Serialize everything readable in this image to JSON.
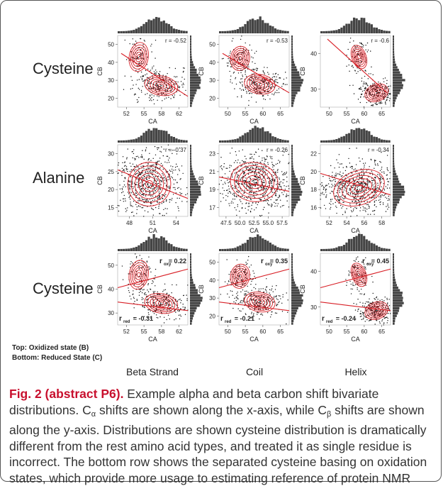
{
  "rows": [
    {
      "label": "Cysteine"
    },
    {
      "label": "Alanine"
    },
    {
      "label": "Cysteine"
    }
  ],
  "columns": [
    {
      "label": "Beta Strand"
    },
    {
      "label": "Coil"
    },
    {
      "label": "Helix"
    }
  ],
  "legend_lines": [
    "Top: Oxidized state (B)",
    "Bottom: Reduced State (C)"
  ],
  "axis": {
    "xlabel": "CA",
    "ylabel": "CB"
  },
  "panels": [
    {
      "r": "r = -0.52",
      "xticks": [
        "52",
        "55",
        "58",
        "62"
      ],
      "yticks": [
        "50",
        "40",
        "30",
        "20"
      ]
    },
    {
      "r": "r = -0.53",
      "xticks": [
        "50",
        "55",
        "60",
        "65"
      ],
      "yticks": [
        "50",
        "40",
        "30",
        "20"
      ]
    },
    {
      "r": "r = -0.6",
      "xticks": [
        "50",
        "55",
        "60",
        "65"
      ],
      "yticks": [
        "40",
        "30"
      ]
    },
    {
      "r": "r = -0.37",
      "xticks": [
        "48",
        "51",
        "54"
      ],
      "yticks": [
        "30",
        "25",
        "20",
        "15"
      ]
    },
    {
      "r": "r = -0.26",
      "xticks": [
        "47.5",
        "50.0",
        "52.5",
        "55.0",
        "57.5"
      ],
      "yticks": [
        "23",
        "21",
        "19",
        "17"
      ]
    },
    {
      "r": "r = -0.34",
      "xticks": [
        "52",
        "54",
        "56",
        "58"
      ],
      "yticks": [
        "22",
        "20",
        "18",
        "16"
      ]
    },
    {
      "r_oxy": "= 0.22",
      "r_red": "= -0.31",
      "xticks": [
        "52",
        "55",
        "58",
        "62"
      ],
      "yticks": [
        "50",
        "40",
        "30"
      ]
    },
    {
      "r_oxy": "= 0.35",
      "r_red": "= -0.21",
      "xticks": [
        "50",
        "55",
        "60",
        "65"
      ],
      "yticks": [
        "50",
        "40",
        "30",
        "20"
      ]
    },
    {
      "r_oxy": "= 0.45",
      "r_red": "= -0.24",
      "xticks": [
        "50",
        "55",
        "60",
        "65"
      ],
      "yticks": [
        "40",
        "30"
      ]
    }
  ],
  "caption": {
    "fig_label": "Fig. 2 (abstract P6).",
    "part1": " Example alpha and beta carbon shift bivariate distributions. C",
    "sub_alpha": "α",
    "part2": " shifts are shown along the x-axis, while C",
    "sub_beta": "β",
    "part3": " shifts are shown along the y-axis. Distributions are shown cysteine distribution is dramatically different from the rest amino acid types, and treated it as single residue is incorrect. The bottom row shows the separated cysteine basing on oxidation states, which provide more usage to estimating reference of protein NMR"
  },
  "colors": {
    "contour": "#d81f26",
    "points": "#111111",
    "hist": "#444444",
    "caption_label": "#c8102e"
  }
}
